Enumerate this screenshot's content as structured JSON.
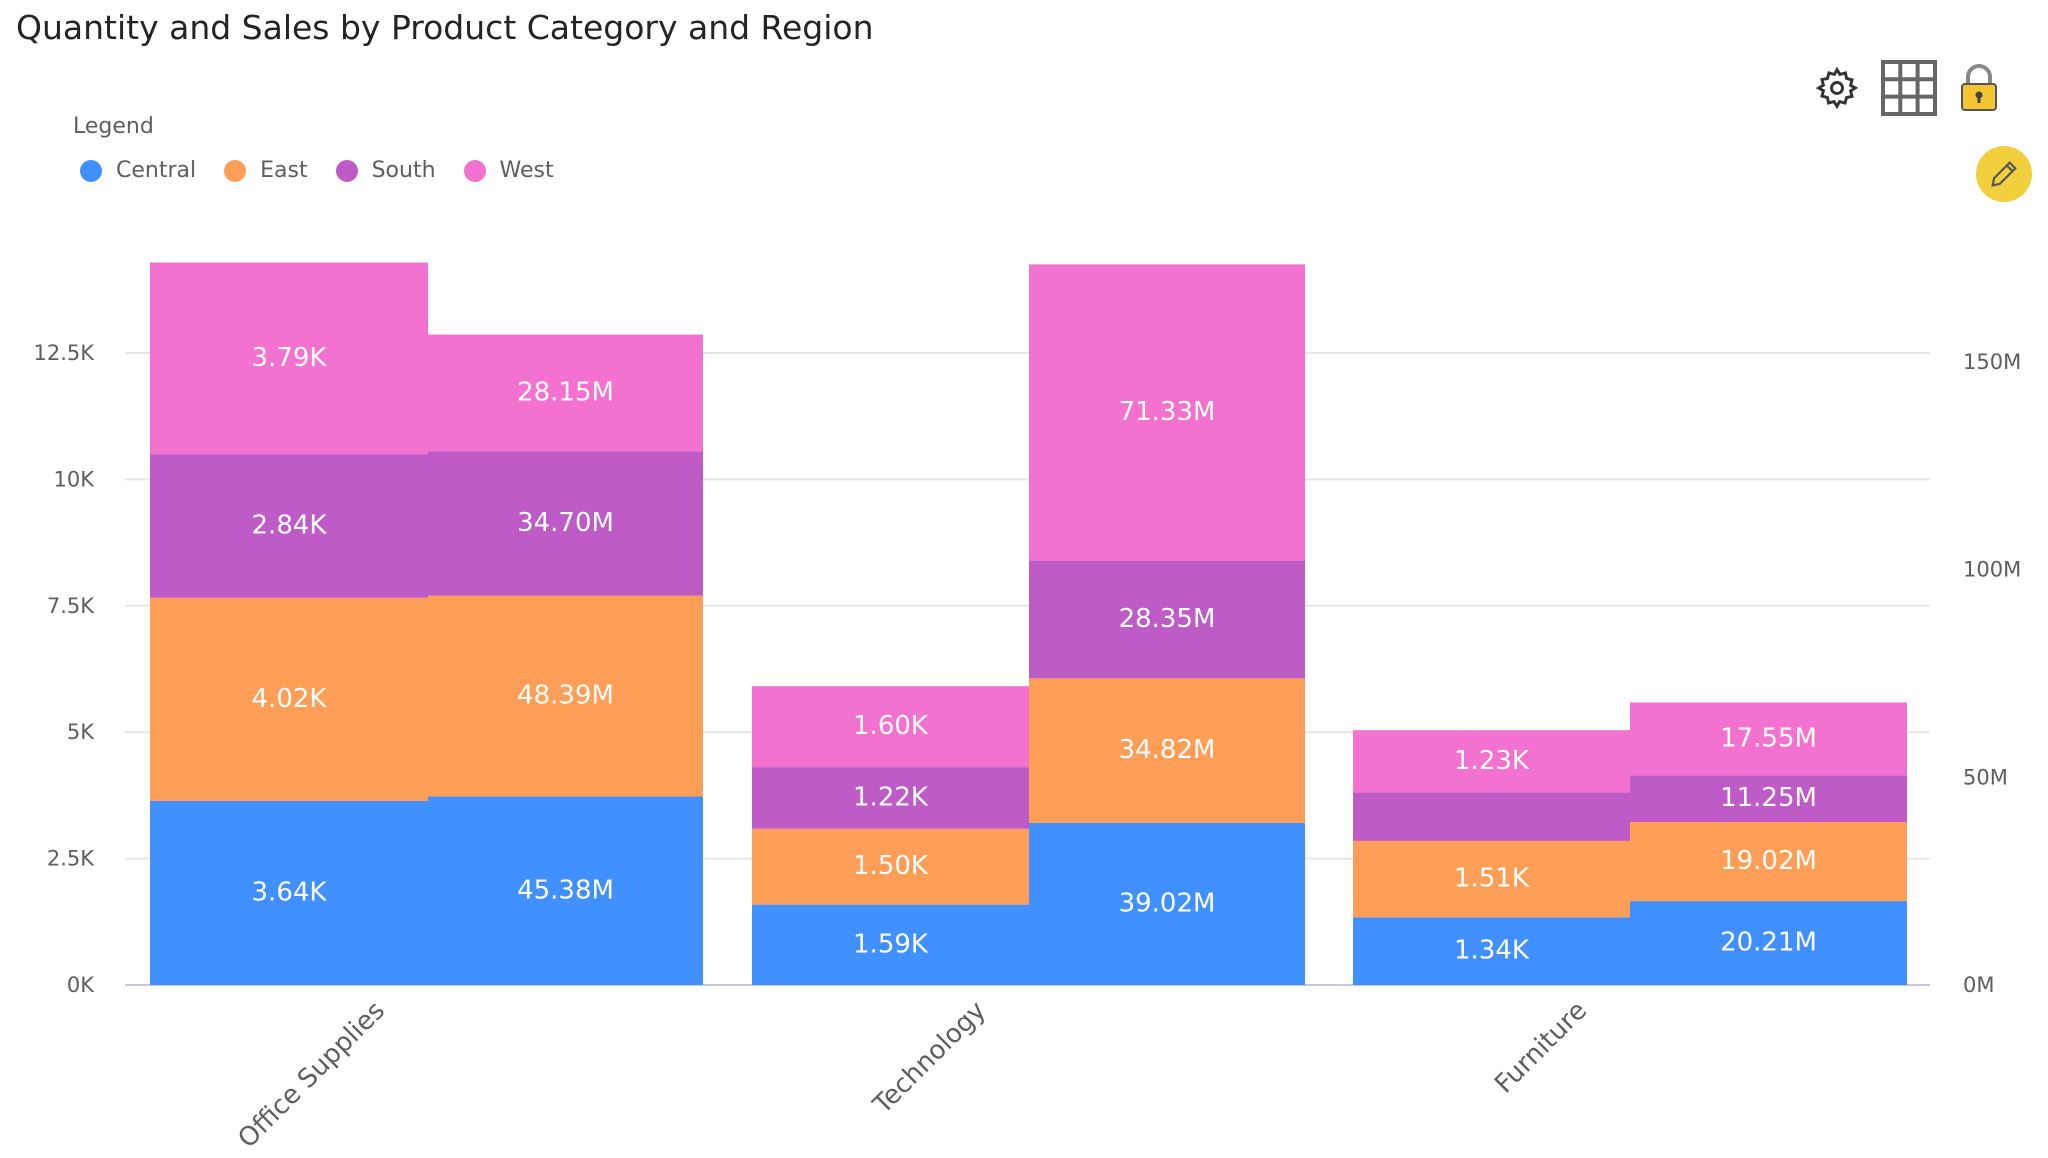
{
  "chart_data": {
    "type": "bar",
    "subtype": "stacked-column-dual-axis",
    "title": "Quantity and Sales by Product Category and Region",
    "legend_title": "Legend",
    "legend_placement": "top-left",
    "categories": [
      "Office Supplies",
      "Technology",
      "Furniture"
    ],
    "measures": [
      "Quantity",
      "Sales"
    ],
    "series": [
      {
        "name": "Central",
        "color": "#4190FF",
        "quantity": [
          3640,
          1590,
          1340
        ],
        "quantity_labels": [
          "3.64K",
          "1.59K",
          "1.34K"
        ],
        "sales": [
          45.38,
          39.02,
          20.21
        ],
        "sales_labels": [
          "45.38M",
          "39.02M",
          "20.21M"
        ]
      },
      {
        "name": "East",
        "color": "#FF9F57",
        "quantity": [
          4020,
          1500,
          1510
        ],
        "quantity_labels": [
          "4.02K",
          "1.50K",
          "1.51K"
        ],
        "sales": [
          48.39,
          34.82,
          19.02
        ],
        "sales_labels": [
          "48.39M",
          "34.82M",
          "19.02M"
        ]
      },
      {
        "name": "South",
        "color": "#BE5BC6",
        "quantity": [
          2840,
          1220,
          960
        ],
        "quantity_labels": [
          "2.84K",
          "1.22K",
          ""
        ],
        "sales": [
          34.7,
          28.35,
          11.25
        ],
        "sales_labels": [
          "34.70M",
          "28.35M",
          "11.25M"
        ]
      },
      {
        "name": "West",
        "color": "#F472CF",
        "quantity": [
          3790,
          1600,
          1230
        ],
        "quantity_labels": [
          "3.79K",
          "1.60K",
          "1.23K"
        ],
        "sales": [
          28.15,
          71.33,
          17.55
        ],
        "sales_labels": [
          "28.15M",
          "71.33M",
          "17.55M"
        ]
      }
    ],
    "y_left": {
      "ticks": [
        "0K",
        "2.5K",
        "5K",
        "7.5K",
        "10K",
        "12.5K"
      ],
      "tick_values": [
        0,
        2500,
        5000,
        7500,
        10000,
        12500
      ],
      "range": [
        0,
        14500
      ]
    },
    "y_right": {
      "ticks": [
        "0M",
        "50M",
        "100M",
        "150M"
      ],
      "tick_values": [
        0,
        50,
        100,
        150
      ],
      "range": [
        0,
        174
      ]
    },
    "grid": true
  },
  "toolbar": {
    "icons": [
      "gear-icon",
      "grid-icon",
      "lock-icon",
      "pencil-icon"
    ]
  }
}
